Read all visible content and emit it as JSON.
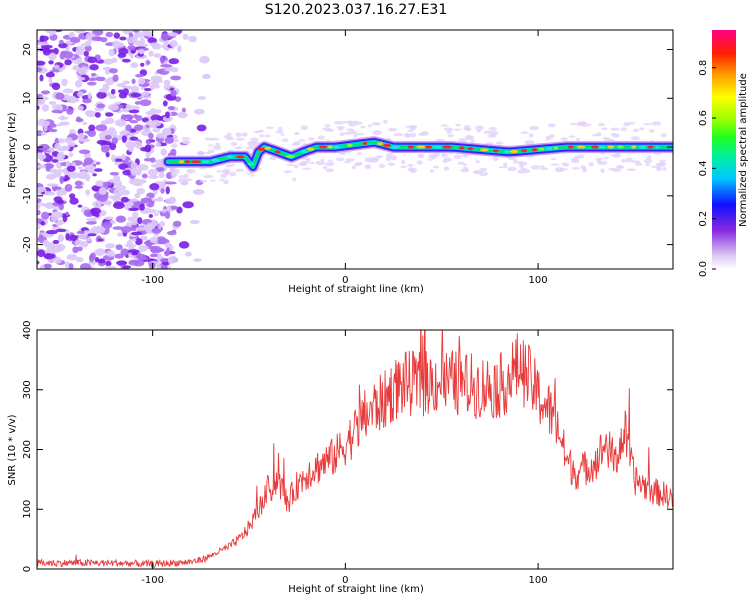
{
  "title": "S120.2023.037.16.27.E31",
  "colors": {
    "snr_line": "#e83a3a",
    "low_signal": "#8a2be2"
  },
  "chart_data": [
    {
      "type": "heatmap",
      "xlabel": "Height of straight line (km)",
      "ylabel": "Frequency (Hz)",
      "xlim": [
        -160,
        170
      ],
      "ylim": [
        -25,
        24
      ],
      "xticks": [
        -100,
        0,
        100
      ],
      "yticks": [
        -20,
        -10,
        0,
        10,
        20
      ],
      "colorbar": {
        "label": "Normalized spectral amplitude",
        "range": [
          0,
          0.95
        ],
        "ticks": [
          "0.0",
          "0.2",
          "0.4",
          "0.6",
          "0.8"
        ],
        "colormap": "white-purple-blue-cyan-green-yellow-orange-red-magenta"
      },
      "ridge": {
        "x": [
          -92,
          -80,
          -70,
          -60,
          -52,
          -48,
          -45,
          -42,
          -35,
          -28,
          -22,
          -15,
          -5,
          5,
          15,
          25,
          40,
          55,
          70,
          85,
          100,
          115,
          130,
          145,
          160,
          168
        ],
        "frequency": [
          -3,
          -3,
          -3,
          -2,
          -2,
          -4,
          -1,
          0,
          -1,
          -2,
          -1,
          0,
          0,
          0.5,
          1,
          0,
          0,
          0,
          -0.5,
          -1,
          -0.5,
          0,
          0,
          0,
          0,
          0
        ]
      }
    },
    {
      "type": "line",
      "xlabel": "Height of straight line (km)",
      "ylabel": "SNR (10 * v/v)",
      "xlim": [
        -160,
        170
      ],
      "ylim": [
        0,
        400
      ],
      "xticks": [
        -100,
        0,
        100
      ],
      "yticks": [
        0,
        100,
        200,
        300,
        400
      ],
      "series": [
        {
          "x": [
            -160,
            -140,
            -120,
            -100,
            -90,
            -80,
            -75,
            -70,
            -65,
            -60,
            -55,
            -50,
            -45,
            -40,
            -35,
            -30,
            -25,
            -20,
            -15,
            -10,
            -5,
            0,
            5,
            10,
            15,
            20,
            25,
            30,
            40,
            50,
            60,
            70,
            80,
            85,
            90,
            95,
            100,
            105,
            110,
            115,
            120,
            125,
            130,
            135,
            140,
            145,
            150,
            155,
            160,
            165,
            170
          ],
          "y": [
            10,
            10,
            10,
            8,
            10,
            12,
            15,
            22,
            30,
            38,
            50,
            70,
            100,
            130,
            150,
            110,
            140,
            160,
            170,
            180,
            190,
            210,
            230,
            255,
            270,
            280,
            300,
            310,
            310,
            315,
            310,
            305,
            305,
            320,
            340,
            320,
            290,
            270,
            240,
            180,
            160,
            170,
            180,
            210,
            180,
            230,
            150,
            140,
            130,
            125,
            120
          ]
        }
      ]
    }
  ]
}
